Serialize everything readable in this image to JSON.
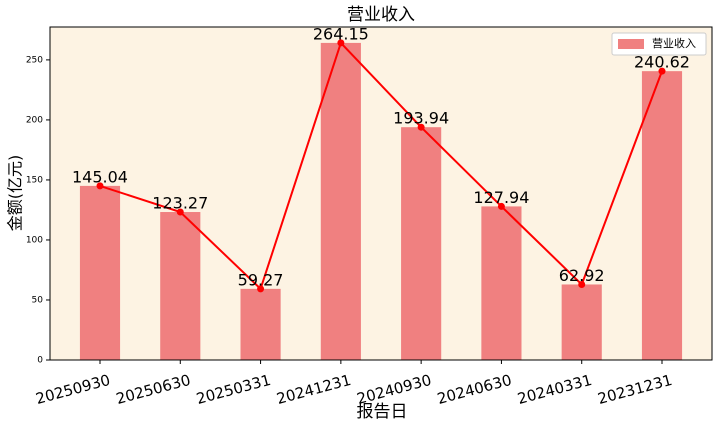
{
  "chart_data": {
    "type": "bar_line",
    "title": "营业收入",
    "xlabel": "报告日",
    "ylabel": "金额(亿元)",
    "categories": [
      "20250930",
      "20250630",
      "20250331",
      "20241231",
      "20240930",
      "20240630",
      "20240331",
      "20231231"
    ],
    "series": [
      {
        "name": "营业收入",
        "color": "#f08080",
        "line_color": "#ff0000",
        "values": [
          145.04,
          123.27,
          59.27,
          264.15,
          193.94,
          127.94,
          62.92,
          240.62
        ]
      }
    ],
    "ylim": [
      0,
      277.4
    ],
    "yticks": [
      0,
      50,
      100,
      150,
      200,
      250
    ],
    "legend": "upper right",
    "background": "#fdf3e3"
  }
}
